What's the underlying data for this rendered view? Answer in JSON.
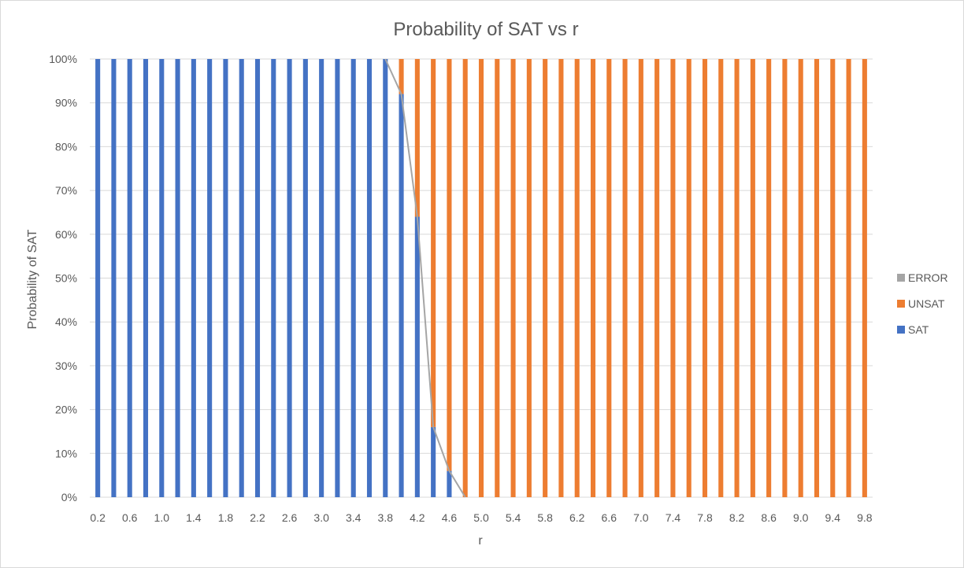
{
  "chart_data": {
    "type": "bar",
    "stacked": true,
    "title": "Probability of SAT vs r",
    "xlabel": "r",
    "ylabel": "Probability of SAT",
    "ylim": [
      0,
      1
    ],
    "y_ticks": [
      "0%",
      "10%",
      "20%",
      "30%",
      "40%",
      "50%",
      "60%",
      "70%",
      "80%",
      "90%",
      "100%"
    ],
    "x_tick_labels": [
      "0.2",
      "0.6",
      "1.0",
      "1.4",
      "1.8",
      "2.2",
      "2.6",
      "3.0",
      "3.4",
      "3.8",
      "4.2",
      "4.6",
      "5.0",
      "5.4",
      "5.8",
      "6.2",
      "6.6",
      "7.0",
      "7.4",
      "7.8",
      "8.2",
      "8.6",
      "9.0",
      "9.4",
      "9.8"
    ],
    "categories": [
      "0.2",
      "0.4",
      "0.6",
      "0.8",
      "1.0",
      "1.2",
      "1.4",
      "1.6",
      "1.8",
      "2.0",
      "2.2",
      "2.4",
      "2.6",
      "2.8",
      "3.0",
      "3.2",
      "3.4",
      "3.6",
      "3.8",
      "4.0",
      "4.2",
      "4.4",
      "4.6",
      "4.8",
      "5.0",
      "5.2",
      "5.4",
      "5.6",
      "5.8",
      "6.0",
      "6.2",
      "6.4",
      "6.6",
      "6.8",
      "7.0",
      "7.2",
      "7.4",
      "7.6",
      "7.8",
      "8.0",
      "8.2",
      "8.4",
      "8.6",
      "8.8",
      "9.0",
      "9.2",
      "9.4",
      "9.6",
      "9.8"
    ],
    "series": [
      {
        "name": "SAT",
        "color": "#4472c4",
        "values": [
          1,
          1,
          1,
          1,
          1,
          1,
          1,
          1,
          1,
          1,
          1,
          1,
          1,
          1,
          1,
          1,
          1,
          1,
          1,
          0.92,
          0.64,
          0.16,
          0.06,
          0,
          0,
          0,
          0,
          0,
          0,
          0,
          0,
          0,
          0,
          0,
          0,
          0,
          0,
          0,
          0,
          0,
          0,
          0,
          0,
          0,
          0,
          0,
          0,
          0,
          0
        ]
      },
      {
        "name": "UNSAT",
        "color": "#ed7d31",
        "values": [
          0,
          0,
          0,
          0,
          0,
          0,
          0,
          0,
          0,
          0,
          0,
          0,
          0,
          0,
          0,
          0,
          0,
          0,
          0,
          0.08,
          0.36,
          0.84,
          0.94,
          1,
          1,
          1,
          1,
          1,
          1,
          1,
          1,
          1,
          1,
          1,
          1,
          1,
          1,
          1,
          1,
          1,
          1,
          1,
          1,
          1,
          1,
          1,
          1,
          1,
          1
        ]
      },
      {
        "name": "ERROR",
        "color": "#a5a5a5",
        "values": [
          0,
          0,
          0,
          0,
          0,
          0,
          0,
          0,
          0,
          0,
          0,
          0,
          0,
          0,
          0,
          0,
          0,
          0,
          0,
          0,
          0,
          0,
          0,
          0,
          0,
          0,
          0,
          0,
          0,
          0,
          0,
          0,
          0,
          0,
          0,
          0,
          0,
          0,
          0,
          0,
          0,
          0,
          0,
          0,
          0,
          0,
          0,
          0,
          0
        ]
      }
    ],
    "legend": [
      "ERROR",
      "UNSAT",
      "SAT"
    ],
    "legend_position": "right",
    "grid": true,
    "colors": {
      "gridline": "#d9d9d9",
      "text": "#595959",
      "series_line": "#a5a5a5"
    }
  }
}
